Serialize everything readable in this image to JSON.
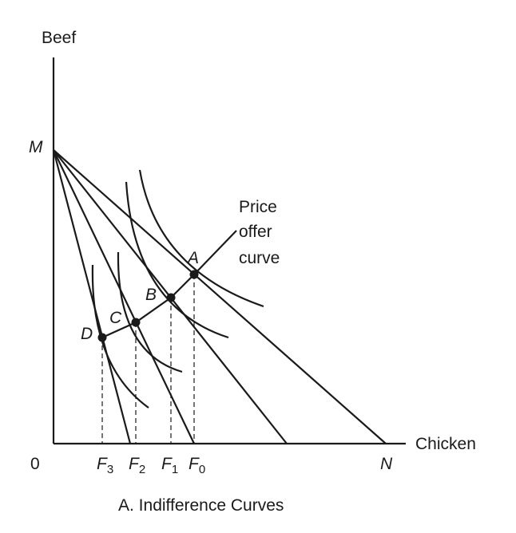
{
  "diagram": {
    "y_axis_label": "Beef",
    "x_axis_label": "Chicken",
    "origin_label": "0",
    "intercept_y_label": "M",
    "intercept_x_label": "N",
    "offer_curve_label": [
      "Price",
      "offer",
      "curve"
    ],
    "points": [
      {
        "label": "A",
        "tick": "F",
        "tick_sub": "0"
      },
      {
        "label": "B",
        "tick": "F",
        "tick_sub": "1"
      },
      {
        "label": "C",
        "tick": "F",
        "tick_sub": "2"
      },
      {
        "label": "D",
        "tick": "F",
        "tick_sub": "3"
      }
    ],
    "caption": "A. Indifference Curves"
  }
}
